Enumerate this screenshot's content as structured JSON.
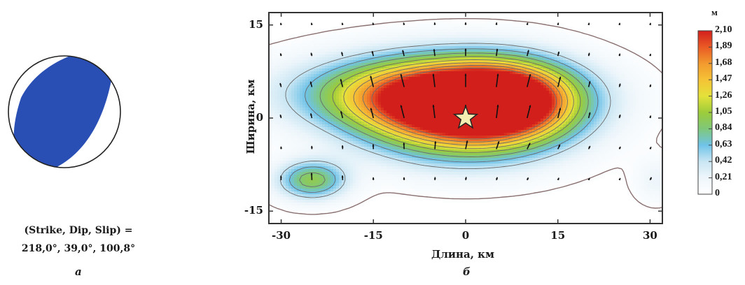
{
  "panel_a": {
    "letter": "а",
    "caption_line1": "(Strike, Dip, Slip) =",
    "caption_line2": "218,0°, 39,0°, 100,8°",
    "beachball_color": "#2a4fb4"
  },
  "panel_b": {
    "letter": "б"
  },
  "chart_data": {
    "type": "heatmap",
    "xlabel": "Длина, км",
    "ylabel": "Ширина, км",
    "xlim": [
      -32,
      32
    ],
    "ylim": [
      -17,
      17
    ],
    "xticks": [
      -30,
      -15,
      0,
      15,
      30
    ],
    "yticks": [
      15,
      0,
      -15
    ],
    "xtick_labels": [
      "-30",
      "-15",
      "0",
      "15",
      "30"
    ],
    "ytick_labels": [
      "15",
      "0",
      "-15"
    ],
    "colorbar": {
      "unit": "м",
      "min": 0,
      "max": 2.1,
      "ticks": [
        "2,10",
        "1,89",
        "1,68",
        "1,47",
        "1,26",
        "1,05",
        "0,84",
        "0,63",
        "0,42",
        "0,21",
        "0"
      ]
    },
    "max_slip": 2.1,
    "hypocenter": [
      0,
      0
    ],
    "slip_patches": [
      {
        "x": 0,
        "y": 1,
        "sx": 11,
        "sy": 5,
        "amp": 1.0
      },
      {
        "x": -6,
        "y": 4,
        "sx": 14,
        "sy": 4,
        "amp": 0.7
      },
      {
        "x": 7,
        "y": 3,
        "sx": 7,
        "sy": 4,
        "amp": 0.55
      },
      {
        "x": -25,
        "y": -10,
        "sx": 4,
        "sy": 2.2,
        "amp": 0.45
      },
      {
        "x": 31,
        "y": -10,
        "sx": 2.5,
        "sy": 2.5,
        "amp": 0.1
      }
    ],
    "contour_levels": [
      0.02,
      0.2,
      0.3,
      0.4,
      0.5,
      0.6,
      0.7,
      0.8,
      0.9
    ],
    "vector_grid": {
      "x": [
        -30,
        -25,
        -20,
        -15,
        -10,
        -5,
        0,
        5,
        10,
        15,
        20,
        25,
        30
      ],
      "y": [
        15,
        10,
        5,
        0,
        -5,
        -10
      ]
    }
  },
  "colors": {
    "contour_line": "#6b6b6b",
    "arrow": "#111111",
    "star_fill": "#f4ecb0",
    "frame": "#333333"
  }
}
